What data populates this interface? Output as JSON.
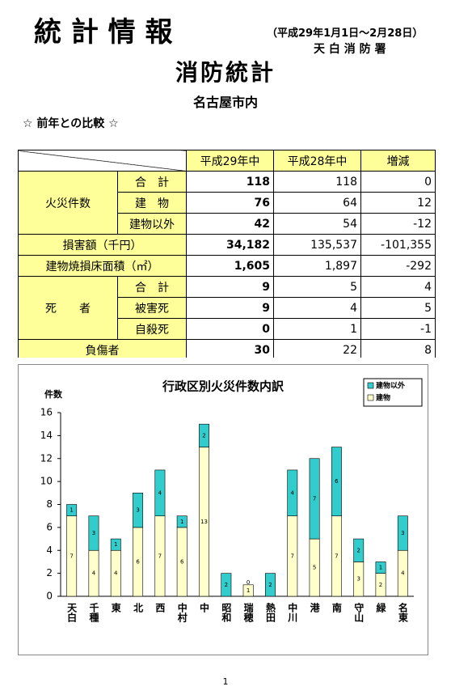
{
  "header": {
    "title": "統 計 情 報",
    "period": "（平成29年1月1日～2月28日）",
    "office": "天 白 消 防 署",
    "subtitle": "消防統計",
    "area": "名古屋市内",
    "section": "☆ 前年との比較 ☆"
  },
  "table": {
    "header": [
      "平成29年中",
      "平成28年中",
      "増減"
    ],
    "fires": {
      "label": "火災件数",
      "rows": [
        {
          "label": "合　計",
          "values": [
            "118",
            "118",
            "0"
          ]
        },
        {
          "label": "建　物",
          "values": [
            "76",
            "64",
            "12"
          ]
        },
        {
          "label": "建物以外",
          "values": [
            "42",
            "54",
            "-12"
          ]
        }
      ]
    },
    "damage": {
      "label": "損害額（千円）",
      "values": [
        "34,182",
        "135,537",
        "-101,355"
      ]
    },
    "area": {
      "label": "建物焼損床面積（㎡）",
      "values": [
        "1,605",
        "1,897",
        "-292"
      ]
    },
    "deaths": {
      "label": "死　　者",
      "rows": [
        {
          "label": "合　計",
          "values": [
            "9",
            "5",
            "4"
          ]
        },
        {
          "label": "被害死",
          "values": [
            "9",
            "4",
            "5"
          ]
        },
        {
          "label": "自殺死",
          "values": [
            "0",
            "1",
            "-1"
          ]
        }
      ]
    },
    "injured": {
      "label": "負傷者",
      "values": [
        "30",
        "22",
        "8"
      ]
    }
  },
  "chart_data": {
    "type": "stacked_bar",
    "title": "行政区別火災件数内訳",
    "y_label": "件数",
    "categories": [
      "天白",
      "千種",
      "東",
      "北",
      "西",
      "中村",
      "中",
      "昭和",
      "瑞穂",
      "熱田",
      "中川",
      "港",
      "南",
      "守山",
      "緑",
      "名東"
    ],
    "series": [
      {
        "name": "建物",
        "color": "#ffffcc",
        "values": [
          7,
          4,
          4,
          6,
          7,
          6,
          13,
          0,
          1,
          0,
          7,
          5,
          7,
          3,
          2,
          4
        ]
      },
      {
        "name": "建物以外",
        "color": "#33cccc",
        "values": [
          1,
          3,
          1,
          3,
          4,
          1,
          2,
          2,
          0,
          2,
          4,
          7,
          6,
          2,
          1,
          3
        ]
      }
    ],
    "ylim": [
      0,
      16
    ],
    "yticks": [
      0,
      2,
      4,
      6,
      8,
      10,
      12,
      14,
      16
    ]
  },
  "page_number": "1"
}
